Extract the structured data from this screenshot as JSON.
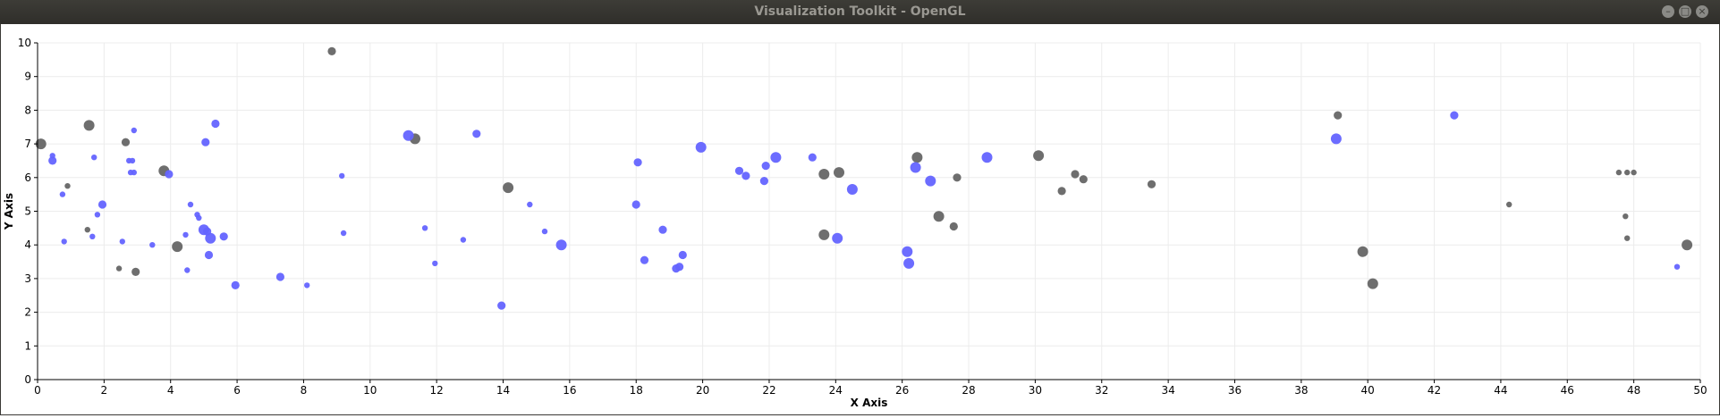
{
  "window": {
    "title": "Visualization Toolkit - OpenGL",
    "minimize_glyph": "–",
    "maximize_glyph": "□",
    "close_glyph": "×"
  },
  "colors": {
    "titlebar": "#3d3c37",
    "gray_series": "#666666",
    "blue_series": "#6464ff",
    "grid": "#ececec",
    "axis": "#000000"
  },
  "chart_data": {
    "type": "scatter",
    "title": "",
    "xlabel": "X Axis",
    "ylabel": "Y Axis",
    "xlim": [
      0,
      50
    ],
    "ylim": [
      0,
      10
    ],
    "x_ticks": [
      0,
      2,
      4,
      6,
      8,
      10,
      12,
      14,
      16,
      18,
      20,
      22,
      24,
      26,
      28,
      30,
      32,
      34,
      36,
      38,
      40,
      42,
      44,
      46,
      48,
      50
    ],
    "y_ticks": [
      0,
      1,
      2,
      3,
      4,
      5,
      6,
      7,
      8,
      9,
      10
    ],
    "grid": true,
    "legend": "none",
    "series": [
      {
        "color": "#666666",
        "points": [
          [
            0.1,
            7.0,
            3
          ],
          [
            0.9,
            5.75,
            1
          ],
          [
            1.5,
            4.45,
            1
          ],
          [
            1.55,
            7.55,
            3
          ],
          [
            2.45,
            3.3,
            1
          ],
          [
            2.65,
            7.05,
            2
          ],
          [
            2.95,
            3.2,
            2
          ],
          [
            3.8,
            6.2,
            3
          ],
          [
            4.2,
            3.95,
            3
          ],
          [
            8.85,
            9.75,
            2
          ],
          [
            11.35,
            7.15,
            3
          ],
          [
            14.15,
            5.7,
            3
          ],
          [
            23.65,
            6.1,
            3
          ],
          [
            23.65,
            4.3,
            3
          ],
          [
            24.1,
            6.15,
            3
          ],
          [
            26.45,
            6.6,
            3
          ],
          [
            27.1,
            4.85,
            3
          ],
          [
            27.55,
            4.55,
            2
          ],
          [
            27.65,
            6.0,
            2
          ],
          [
            30.1,
            6.65,
            3
          ],
          [
            30.8,
            5.6,
            2
          ],
          [
            31.2,
            6.1,
            2
          ],
          [
            31.45,
            5.95,
            2
          ],
          [
            33.5,
            5.8,
            2
          ],
          [
            39.1,
            7.85,
            2
          ],
          [
            39.85,
            3.8,
            3
          ],
          [
            40.15,
            2.85,
            3
          ],
          [
            44.25,
            5.2,
            1
          ],
          [
            47.55,
            6.15,
            1
          ],
          [
            47.75,
            4.85,
            1
          ],
          [
            47.8,
            4.2,
            1
          ],
          [
            47.8,
            6.15,
            1
          ],
          [
            48.0,
            6.15,
            1
          ],
          [
            49.6,
            4.0,
            3
          ]
        ]
      },
      {
        "color": "#6464ff",
        "points": [
          [
            0.45,
            6.5,
            2
          ],
          [
            0.45,
            6.65,
            1
          ],
          [
            0.75,
            5.5,
            1
          ],
          [
            0.8,
            4.1,
            1
          ],
          [
            1.65,
            4.25,
            1
          ],
          [
            1.7,
            6.6,
            1
          ],
          [
            1.8,
            4.9,
            1
          ],
          [
            1.95,
            5.2,
            2
          ],
          [
            2.55,
            4.1,
            1
          ],
          [
            2.75,
            6.5,
            1
          ],
          [
            2.8,
            6.15,
            1
          ],
          [
            2.85,
            6.5,
            1
          ],
          [
            2.9,
            6.15,
            1
          ],
          [
            2.9,
            7.4,
            1
          ],
          [
            3.45,
            4.0,
            1
          ],
          [
            3.95,
            6.1,
            2
          ],
          [
            4.45,
            4.3,
            1
          ],
          [
            4.5,
            3.25,
            1
          ],
          [
            4.6,
            5.2,
            1
          ],
          [
            4.8,
            4.9,
            1
          ],
          [
            4.85,
            4.8,
            1
          ],
          [
            5.0,
            4.45,
            3
          ],
          [
            5.05,
            7.05,
            2
          ],
          [
            5.1,
            4.4,
            2
          ],
          [
            5.15,
            3.7,
            2
          ],
          [
            5.2,
            4.2,
            3
          ],
          [
            5.35,
            7.6,
            2
          ],
          [
            5.6,
            4.25,
            2
          ],
          [
            5.95,
            2.8,
            2
          ],
          [
            7.3,
            3.05,
            2
          ],
          [
            8.1,
            2.8,
            1
          ],
          [
            9.15,
            6.05,
            1
          ],
          [
            9.2,
            4.35,
            1
          ],
          [
            11.15,
            7.25,
            3
          ],
          [
            11.65,
            4.5,
            1
          ],
          [
            11.95,
            3.45,
            1
          ],
          [
            12.8,
            4.15,
            1
          ],
          [
            13.2,
            7.3,
            2
          ],
          [
            13.95,
            2.2,
            2
          ],
          [
            14.8,
            5.2,
            1
          ],
          [
            15.25,
            4.4,
            1
          ],
          [
            15.75,
            4.0,
            3
          ],
          [
            18.0,
            5.2,
            2
          ],
          [
            18.05,
            6.45,
            2
          ],
          [
            18.25,
            3.55,
            2
          ],
          [
            18.8,
            4.45,
            2
          ],
          [
            19.2,
            3.3,
            2
          ],
          [
            19.3,
            3.35,
            2
          ],
          [
            19.4,
            3.7,
            2
          ],
          [
            19.95,
            6.9,
            3
          ],
          [
            21.1,
            6.2,
            2
          ],
          [
            21.3,
            6.05,
            2
          ],
          [
            21.85,
            5.9,
            2
          ],
          [
            21.9,
            6.35,
            2
          ],
          [
            22.2,
            6.6,
            3
          ],
          [
            23.3,
            6.6,
            2
          ],
          [
            24.05,
            4.2,
            3
          ],
          [
            24.5,
            5.65,
            3
          ],
          [
            26.15,
            3.8,
            3
          ],
          [
            26.2,
            3.45,
            3
          ],
          [
            26.4,
            6.3,
            3
          ],
          [
            26.85,
            5.9,
            3
          ],
          [
            28.55,
            6.6,
            3
          ],
          [
            39.05,
            7.15,
            3
          ],
          [
            42.6,
            7.85,
            2
          ],
          [
            49.3,
            3.35,
            1
          ]
        ]
      }
    ]
  }
}
